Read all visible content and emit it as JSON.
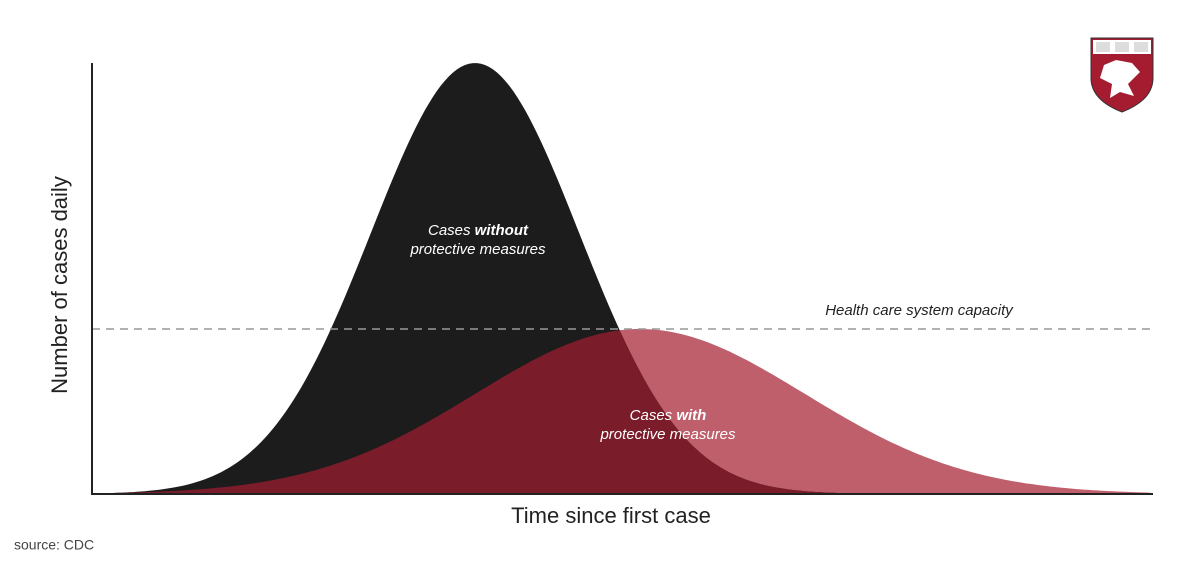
{
  "y_axis_label": "Number of cases daily",
  "x_axis_label": "Time since first case",
  "curves": [
    {
      "label_start": "Cases ",
      "label_emphasis": "without",
      "label_line2": "protective measures"
    },
    {
      "label_start": "Cases ",
      "label_emphasis": "with",
      "label_line2": "protective measures"
    }
  ],
  "capacity_label": "Health care system capacity",
  "source": "source: CDC"
}
